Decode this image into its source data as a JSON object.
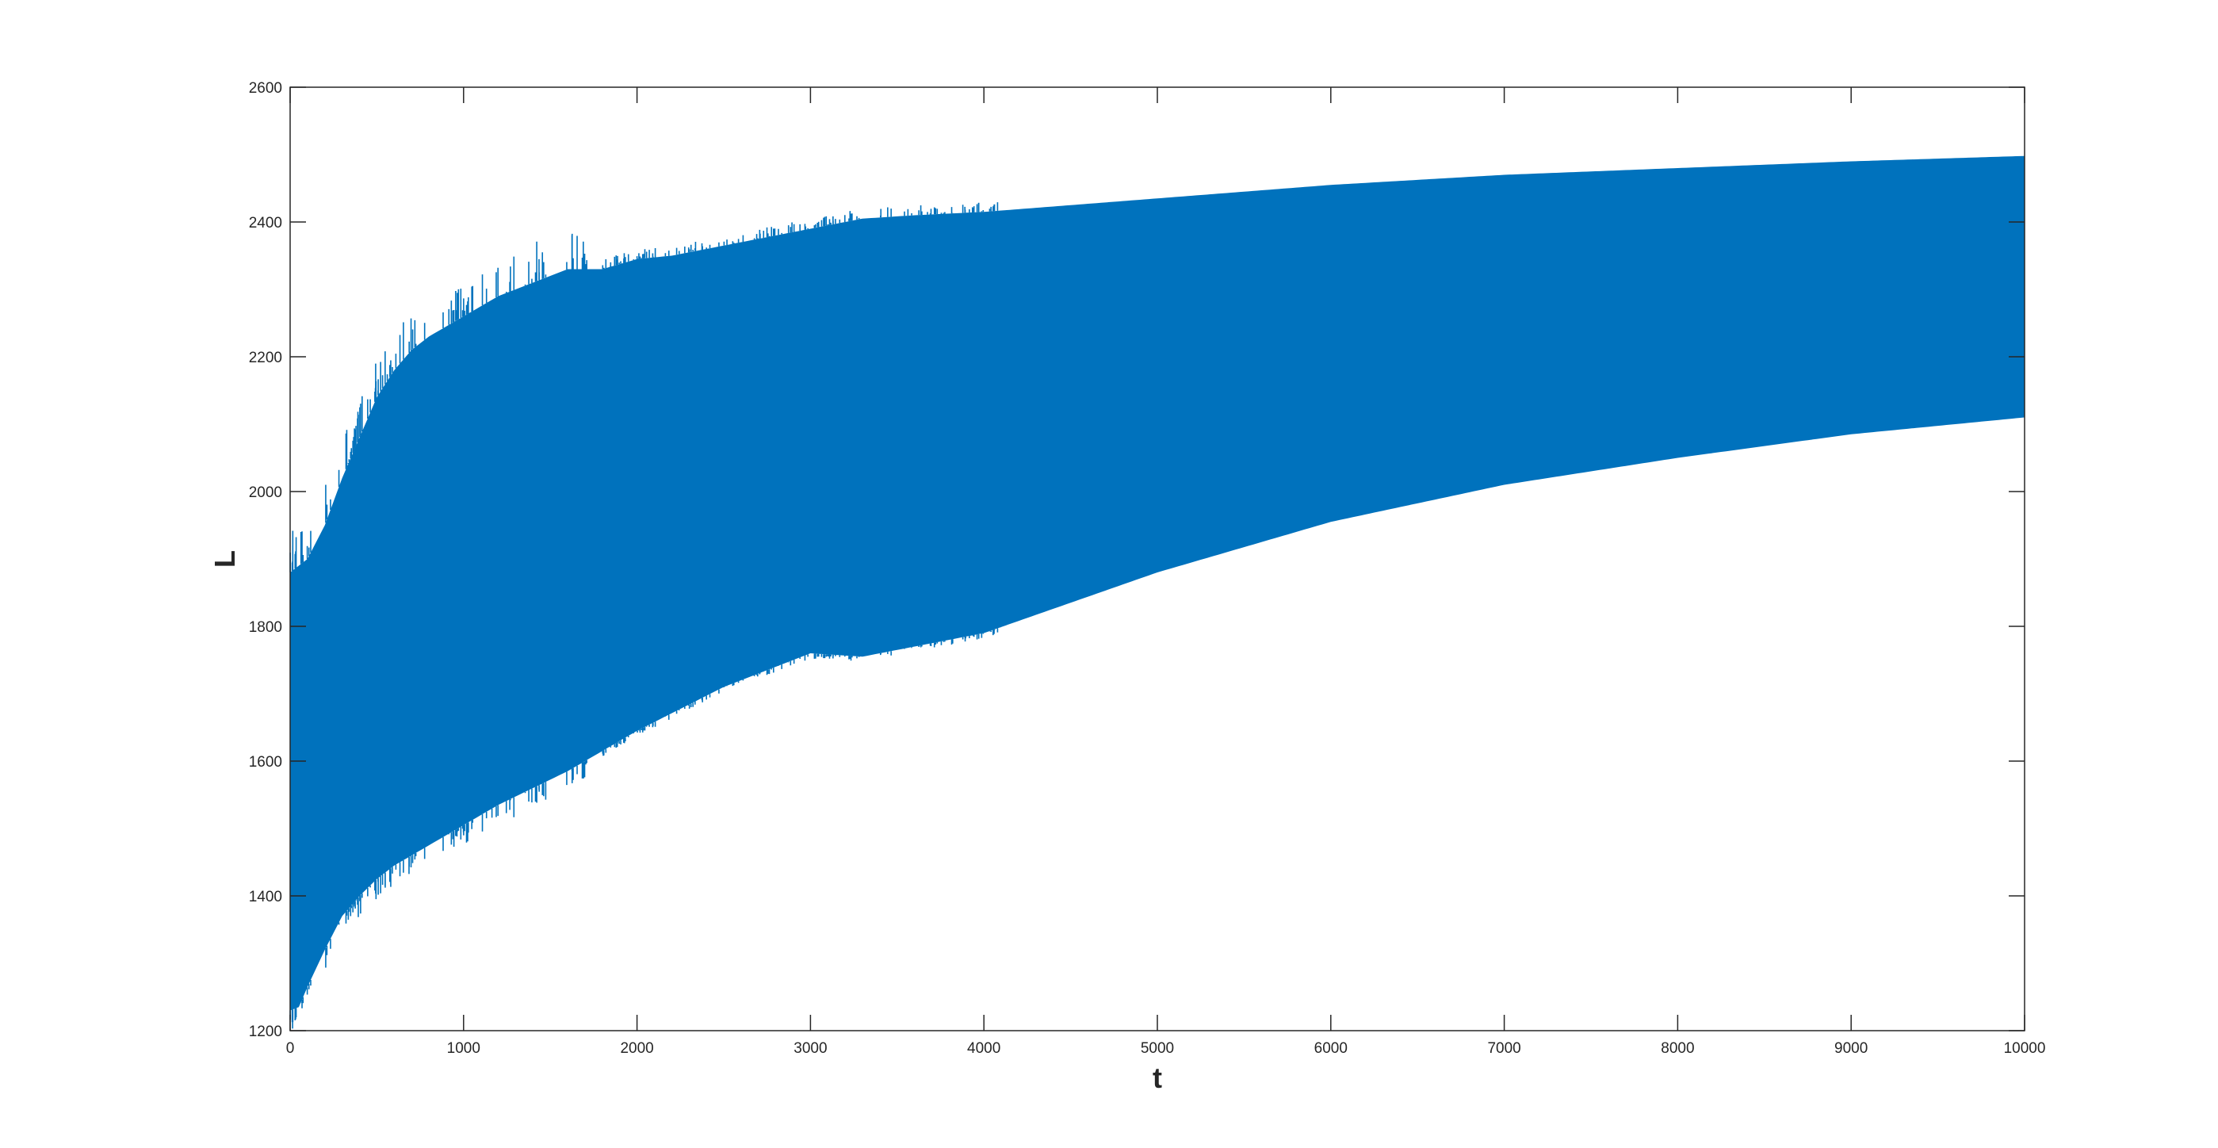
{
  "chart_data": {
    "type": "area",
    "title": "",
    "xlabel": "t",
    "ylabel": "L",
    "xlim": [
      0,
      10000
    ],
    "ylim": [
      1200,
      2600
    ],
    "xticks": [
      "0",
      "1000",
      "2000",
      "3000",
      "4000",
      "5000",
      "6000",
      "7000",
      "8000",
      "9000",
      "10000"
    ],
    "yticks": [
      "1200",
      "1400",
      "1600",
      "1800",
      "2000",
      "2200",
      "2400",
      "2600"
    ],
    "grid": false,
    "legend": "none",
    "color": "#0072bd",
    "series": [
      {
        "role": "upper-envelope",
        "x": [
          0,
          100,
          200,
          300,
          400,
          500,
          600,
          700,
          800,
          1000,
          1200,
          1400,
          1600,
          1800,
          2000,
          2200,
          2500,
          3000,
          3300,
          3600,
          4000,
          5000,
          6000,
          7000,
          8000,
          9000,
          10000
        ],
        "y": [
          1880,
          1900,
          1950,
          2020,
          2080,
          2140,
          2180,
          2210,
          2230,
          2260,
          2290,
          2310,
          2330,
          2330,
          2345,
          2350,
          2365,
          2390,
          2405,
          2410,
          2415,
          2435,
          2455,
          2470,
          2480,
          2490,
          2498
        ]
      },
      {
        "role": "lower-envelope",
        "x": [
          0,
          50,
          100,
          200,
          300,
          400,
          500,
          600,
          700,
          800,
          1000,
          1200,
          1400,
          1600,
          1800,
          2000,
          2500,
          3000,
          3300,
          3600,
          4000,
          5000,
          6000,
          7000,
          8000,
          9000,
          10000
        ],
        "y": [
          1230,
          1235,
          1265,
          1320,
          1370,
          1400,
          1425,
          1445,
          1460,
          1475,
          1505,
          1535,
          1560,
          1585,
          1615,
          1645,
          1710,
          1760,
          1755,
          1770,
          1790,
          1880,
          1955,
          2010,
          2050,
          2085,
          2110
        ]
      }
    ]
  }
}
